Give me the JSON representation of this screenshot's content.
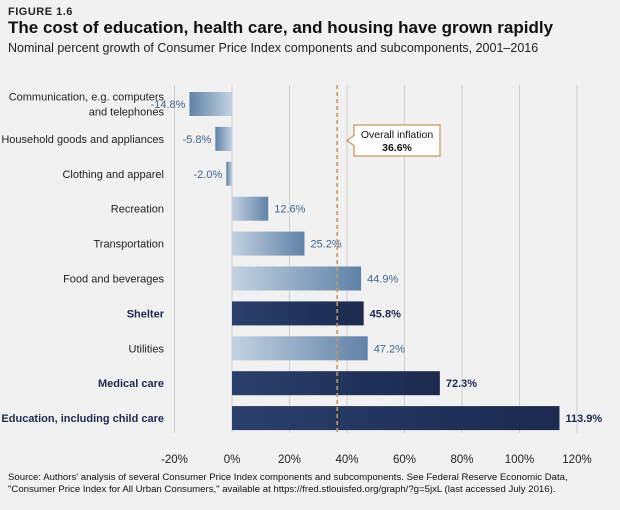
{
  "figure_label": "FIGURE 1.6",
  "title": "The cost of education, health care, and housing have grown rapidly",
  "subtitle": "Nominal percent growth of Consumer Price Index components and subcomponents, 2001–2016",
  "source": "Source: Authors' analysis of several Consumer Price Index components and subcomponents. See Federal Reserve Economic Data, \"Consumer Price Index for All Urban Consumers,\" available at https://fred.stlouisfed.org/graph/?g=5jxL (last accessed July 2016).",
  "colors": {
    "highlight_bar": "#1b2a4e",
    "normal_bar": "#5f82a6",
    "inflation_line": "#c9955a",
    "grid": "#cfcfcf"
  },
  "chart_data": {
    "type": "bar",
    "orientation": "horizontal",
    "categories": [
      [
        "Communication, e.g. computers",
        "and telephones"
      ],
      [
        "Household goods and appliances"
      ],
      [
        "Clothing and apparel"
      ],
      [
        "Recreation"
      ],
      [
        "Transportation"
      ],
      [
        "Food and beverages"
      ],
      [
        "Shelter"
      ],
      [
        "Utilities"
      ],
      [
        "Medical care"
      ],
      [
        "Education, including child care"
      ]
    ],
    "values": [
      -14.8,
      -5.8,
      -2.0,
      12.6,
      25.2,
      44.9,
      45.8,
      47.2,
      72.3,
      113.9
    ],
    "value_labels": [
      "-14.8%",
      "-5.8%",
      "-2.0%",
      "12.6%",
      "25.2%",
      "44.9%",
      "45.8%",
      "47.2%",
      "72.3%",
      "113.9%"
    ],
    "highlighted": [
      false,
      false,
      false,
      false,
      false,
      false,
      true,
      false,
      true,
      true
    ],
    "xlim": [
      -20,
      120
    ],
    "xticks": [
      -20,
      0,
      20,
      40,
      60,
      80,
      100,
      120
    ],
    "xtick_labels": [
      "-20%",
      "0%",
      "20%",
      "40%",
      "60%",
      "80%",
      "100%",
      "120%"
    ],
    "grid": true,
    "reference_line": {
      "value": 36.6,
      "label": "Overall inflation",
      "value_label": "36.6%"
    }
  }
}
